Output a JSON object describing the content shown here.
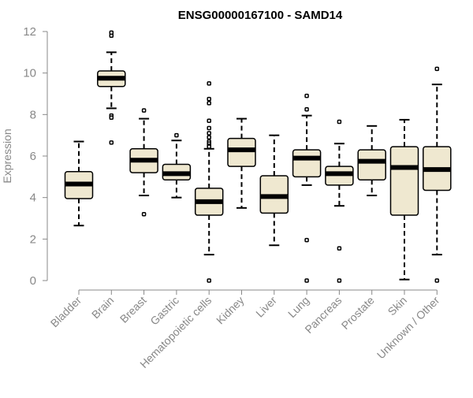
{
  "chart_data": {
    "type": "box",
    "title": "ENSG00000167100 - SAMD14",
    "ylabel": "Expression",
    "xlabel": "",
    "ylim": [
      0,
      12
    ],
    "yticks": [
      0,
      2,
      4,
      6,
      8,
      10,
      12
    ],
    "grid": false,
    "legend": "none",
    "colors": {
      "box_fill": "#efe8d0",
      "outline": "#000000",
      "axis": "#888888",
      "tick_label": "#888888",
      "title": "#000000"
    },
    "categories": [
      "Bladder",
      "Brain",
      "Breast",
      "Gastric",
      "Hematopoietic cells",
      "Kidney",
      "Liver",
      "Lung",
      "Pancreas",
      "Prostate",
      "Skin",
      "Unknown / Other"
    ],
    "boxes": [
      {
        "category": "Bladder",
        "min": 2.65,
        "q1": 3.95,
        "median": 4.65,
        "q3": 5.25,
        "max": 6.7,
        "outliers": []
      },
      {
        "category": "Brain",
        "min": 8.3,
        "q1": 9.35,
        "median": 9.75,
        "q3": 10.1,
        "max": 11.0,
        "outliers": [
          11.8,
          11.95,
          7.95,
          7.85,
          6.65
        ]
      },
      {
        "category": "Breast",
        "min": 4.1,
        "q1": 5.2,
        "median": 5.8,
        "q3": 6.35,
        "max": 7.8,
        "outliers": [
          8.2,
          3.2
        ]
      },
      {
        "category": "Gastric",
        "min": 4.0,
        "q1": 4.85,
        "median": 5.15,
        "q3": 5.6,
        "max": 6.75,
        "outliers": [
          7.0
        ]
      },
      {
        "category": "Hematopoietic cells",
        "min": 1.25,
        "q1": 3.15,
        "median": 3.8,
        "q3": 4.45,
        "max": 6.35,
        "outliers": [
          9.5,
          8.75,
          8.55,
          7.7,
          7.35,
          7.1,
          6.9,
          6.7,
          6.6,
          6.5,
          6.45,
          0.0
        ]
      },
      {
        "category": "Kidney",
        "min": 3.5,
        "q1": 5.5,
        "median": 6.3,
        "q3": 6.85,
        "max": 7.8,
        "outliers": []
      },
      {
        "category": "Liver",
        "min": 1.7,
        "q1": 3.25,
        "median": 4.05,
        "q3": 5.05,
        "max": 7.0,
        "outliers": []
      },
      {
        "category": "Lung",
        "min": 4.6,
        "q1": 5.0,
        "median": 5.9,
        "q3": 6.3,
        "max": 7.95,
        "outliers": [
          8.9,
          8.25,
          1.95,
          0.0
        ]
      },
      {
        "category": "Pancreas",
        "min": 3.6,
        "q1": 4.6,
        "median": 5.15,
        "q3": 5.5,
        "max": 6.6,
        "outliers": [
          7.65,
          1.55,
          0.0
        ]
      },
      {
        "category": "Prostate",
        "min": 4.1,
        "q1": 4.85,
        "median": 5.75,
        "q3": 6.3,
        "max": 7.45,
        "outliers": []
      },
      {
        "category": "Skin",
        "min": 0.05,
        "q1": 3.15,
        "median": 5.45,
        "q3": 6.45,
        "max": 7.75,
        "outliers": []
      },
      {
        "category": "Unknown / Other",
        "min": 1.25,
        "q1": 4.35,
        "median": 5.35,
        "q3": 6.45,
        "max": 9.45,
        "outliers": [
          10.2,
          0.0
        ]
      }
    ]
  }
}
